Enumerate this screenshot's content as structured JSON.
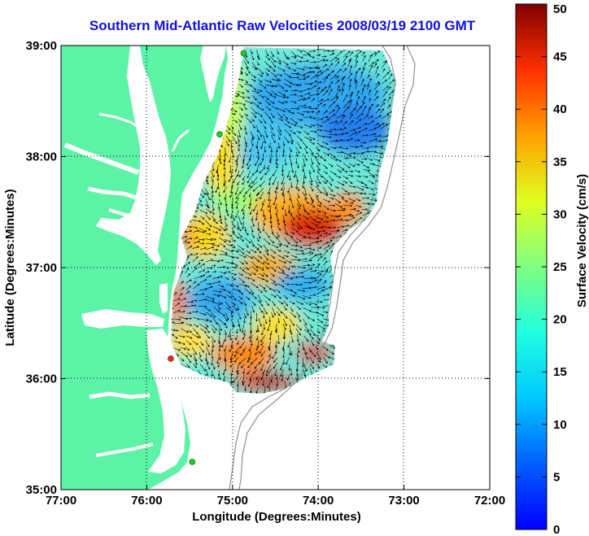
{
  "title": "Southern Mid-Atlantic Raw Velocities 2008/03/19 2100 GMT",
  "map": {
    "xlabel": "Longitude (Degrees:Minutes)",
    "ylabel": "Latitude (Degrees:Minutes)",
    "lon_ticks": [
      "77:00",
      "76:00",
      "75:00",
      "74:00",
      "73:00",
      "72:00"
    ],
    "lat_ticks": [
      "39:00",
      "38:00",
      "37:00",
      "36:00",
      "35:00"
    ],
    "lon_range": [
      -77,
      -72
    ],
    "lat_range": [
      35,
      39
    ],
    "grid": true,
    "land_color": "#5cf3a6",
    "arrow_color": "#000000"
  },
  "colorbar": {
    "label": "Surface Velocity (cm/s)",
    "ticks": [
      "0",
      "5",
      "10",
      "15",
      "20",
      "25",
      "30",
      "35",
      "40",
      "45",
      "50"
    ],
    "range": [
      0,
      50
    ],
    "colormap": "jet"
  },
  "stations": [
    {
      "lon": -74.87,
      "lat": 38.93,
      "color": "#22cc22"
    },
    {
      "lon": -75.15,
      "lat": 38.2,
      "color": "#22cc22"
    },
    {
      "lon": -75.72,
      "lat": 36.18,
      "color": "#ff2020"
    },
    {
      "lon": -75.47,
      "lat": 35.25,
      "color": "#22cc22"
    }
  ]
}
